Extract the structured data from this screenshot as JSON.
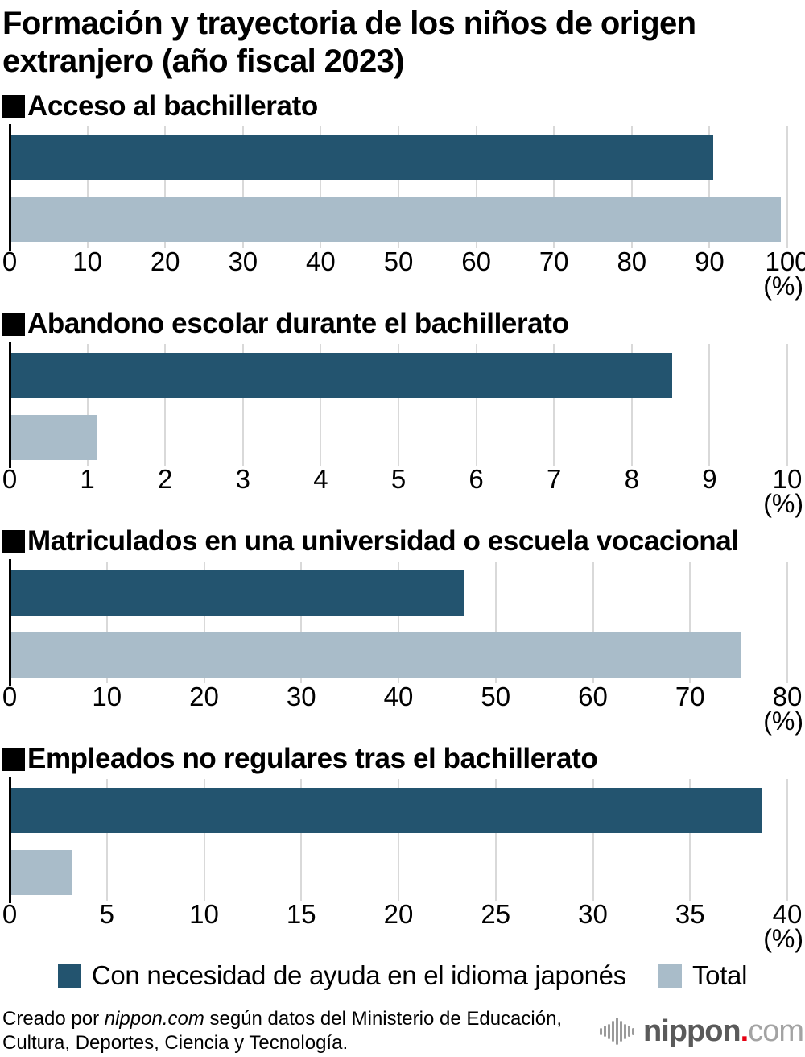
{
  "page_title": {
    "line1": "Formación y trayectoria de los niños de origen",
    "line2": "extranjero (año fiscal 2023)"
  },
  "colors": {
    "primary_series": "#23546F",
    "secondary_series": "#A9BCC9",
    "gridline": "#D9D9D9",
    "axis": "#000000",
    "heading_square": "#000000",
    "logo_gray": "#5A5A5A",
    "logo_light_gray": "#A3A3A3",
    "logo_red": "#E60012"
  },
  "chart_data": [
    {
      "type": "bar",
      "title": "Acceso al bachillerato",
      "unit": "(%)",
      "axis_min": 0,
      "axis_max": 100,
      "tick_step": 10,
      "grid": true,
      "series": [
        {
          "name": "Con necesidad de ayuda en el idioma japonés",
          "value": 90.3
        },
        {
          "name": "Total",
          "value": 99.0
        }
      ]
    },
    {
      "type": "bar",
      "title": "Abandono escolar durante el bachillerato",
      "unit": "(%)",
      "axis_min": 0,
      "axis_max": 10,
      "tick_step": 1,
      "grid": true,
      "series": [
        {
          "name": "Con necesidad de ayuda en el idioma japonés",
          "value": 8.5
        },
        {
          "name": "Total",
          "value": 1.1
        }
      ]
    },
    {
      "type": "bar",
      "title": "Matriculados en una universidad o escuela vocacional",
      "unit": "(%)",
      "axis_min": 0,
      "axis_max": 80,
      "tick_step": 10,
      "grid": true,
      "series": [
        {
          "name": "Con necesidad de ayuda en el idioma japonés",
          "value": 46.6
        },
        {
          "name": "Total",
          "value": 75.0
        }
      ]
    },
    {
      "type": "bar",
      "title": "Empleados no regulares tras el bachillerato",
      "unit": "(%)",
      "axis_min": 0,
      "axis_max": 40,
      "tick_step": 5,
      "grid": true,
      "series": [
        {
          "name": "Con necesidad de ayuda en el idioma japonés",
          "value": 38.6
        },
        {
          "name": "Total",
          "value": 3.1
        }
      ]
    }
  ],
  "legend": {
    "items": [
      {
        "label": "Con necesidad de ayuda en el idioma japonés",
        "color_key": "primary_series"
      },
      {
        "label": "Total",
        "color_key": "secondary_series"
      }
    ]
  },
  "footer": {
    "credit_prefix": "Creado por ",
    "credit_brand": "nippon.com",
    "credit_line1_suffix": " según datos del Ministerio de Educación,",
    "credit_line2": "Cultura, Deportes, Ciencia y Tecnología.",
    "logo_word1": "nippon",
    "logo_dot": ".",
    "logo_word2": "com"
  }
}
